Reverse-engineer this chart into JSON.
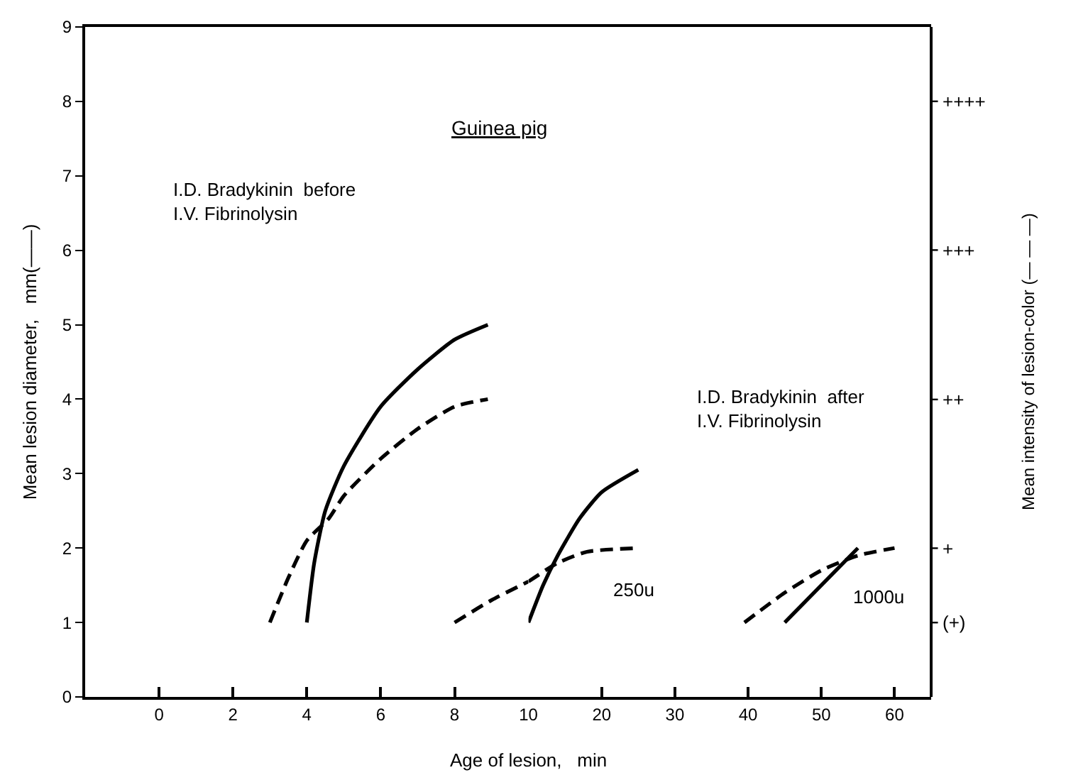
{
  "chart_data": [
    {
      "type": "line",
      "title": "Guinea pig",
      "xlabel": "Age of lesion,   min",
      "ylabel": "Mean lesion diameter,   mm(——)",
      "xlim": [
        -2,
        10
      ],
      "xticks": [
        0,
        2,
        4,
        6,
        8
      ],
      "ylim": [
        0,
        9
      ],
      "yticks": [
        0,
        1,
        2,
        3,
        4,
        5,
        6,
        7,
        8,
        9
      ],
      "marker": "none",
      "annotations": [
        "I.D. Bradykinin  before\nI.V. Fibrinolysin"
      ],
      "series": [
        {
          "color": "#000000",
          "line_style": "solid",
          "x": [
            4,
            4.2,
            4.5,
            5,
            6,
            7,
            8,
            8.9
          ],
          "values": [
            1,
            1.8,
            2.5,
            3.1,
            3.9,
            4.4,
            4.8,
            5
          ]
        },
        {
          "color": "#000000",
          "line_style": "dashed",
          "x": [
            3,
            3.5,
            4,
            4.6,
            5,
            6,
            7,
            8,
            8.9
          ],
          "values": [
            1,
            1.6,
            2.1,
            2.4,
            2.7,
            3.2,
            3.6,
            3.9,
            4
          ]
        },
        {
          "color": "#000000",
          "line_style": "dashed",
          "x": [
            8,
            9,
            10
          ],
          "values": [
            1,
            1.3,
            1.55
          ]
        }
      ]
    },
    {
      "type": "line",
      "y2label": "Mean intensity of lesion-color (— — —)",
      "xlim": [
        10,
        65
      ],
      "xticks": [
        10,
        20,
        30,
        40,
        50,
        60
      ],
      "ylim": [
        0,
        9
      ],
      "tick_labels": "x",
      "marker": "none",
      "annotations": [
        "250u",
        "1000u",
        "I.D. Bradykinin  after\nI.V. Fibrinolysin",
        "(+)",
        "+",
        "++",
        "+++",
        "++++"
      ],
      "series": [
        {
          "color": "#000000",
          "line_style": "solid",
          "x": [
            10,
            12,
            14,
            17,
            20,
            25
          ],
          "values": [
            1,
            1.5,
            1.9,
            2.4,
            2.75,
            3.05
          ]
        },
        {
          "color": "#000000",
          "line_style": "dashed",
          "x": [
            10,
            14,
            18,
            25
          ],
          "values": [
            1.55,
            1.8,
            1.95,
            2
          ]
        },
        {
          "color": "#000000",
          "line_style": "solid",
          "x": [
            45,
            50,
            55
          ],
          "values": [
            1,
            1.5,
            2
          ]
        },
        {
          "color": "#000000",
          "line_style": "dashed",
          "x": [
            39.5,
            45,
            50,
            55,
            60
          ],
          "values": [
            1,
            1.4,
            1.7,
            1.9,
            2
          ]
        }
      ]
    }
  ]
}
